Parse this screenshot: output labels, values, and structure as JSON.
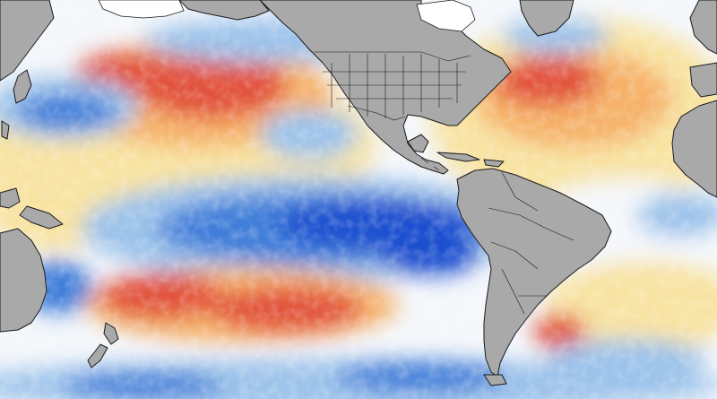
{
  "map": {
    "type": "sea-surface-temperature-anomaly",
    "colors": {
      "cold_strong": "#1c4fcf",
      "cold": "#3f7ed9",
      "cool": "#9cc3ea",
      "neutral": "#f4f7fb",
      "mild": "#f8e3a2",
      "warm": "#f6b26b",
      "hot": "#e2533c",
      "land": "#a9a9a9",
      "coast": "#1a1a1a",
      "ice": "#ffffff"
    },
    "regions": [
      {
        "name": "north-pacific-warm-blob",
        "level": "hot"
      },
      {
        "name": "tropical-pacific-cold-tongue",
        "level": "cold_strong"
      },
      {
        "name": "south-pacific-warm-band",
        "level": "hot"
      },
      {
        "name": "kuroshio-cold-zone",
        "level": "cold"
      },
      {
        "name": "north-atlantic-warm-zone",
        "level": "hot"
      },
      {
        "name": "southern-ocean-cool-band",
        "level": "cold"
      },
      {
        "name": "south-atlantic-warm-patch",
        "level": "hot"
      }
    ]
  }
}
